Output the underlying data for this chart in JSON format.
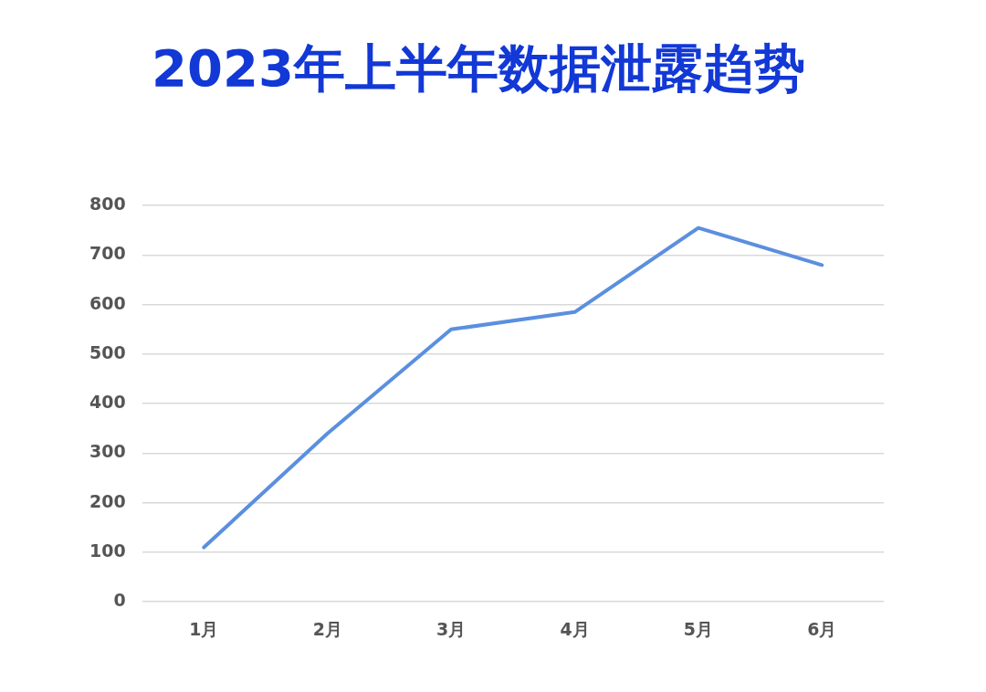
{
  "chart_data": {
    "type": "line",
    "title": "2023年上半年数据泄露趋势",
    "categories": [
      "1月",
      "2月",
      "3月",
      "4月",
      "5月",
      "6月"
    ],
    "series": [
      {
        "color": "#5b8fdf",
        "values": [
          110,
          340,
          550,
          585,
          755,
          680
        ]
      }
    ],
    "ylim": [
      0,
      800
    ],
    "yticks": [
      0,
      100,
      200,
      300,
      400,
      500,
      600,
      700,
      800
    ],
    "grid": "y",
    "legend": false,
    "marker": "none",
    "line_style": "solid"
  }
}
